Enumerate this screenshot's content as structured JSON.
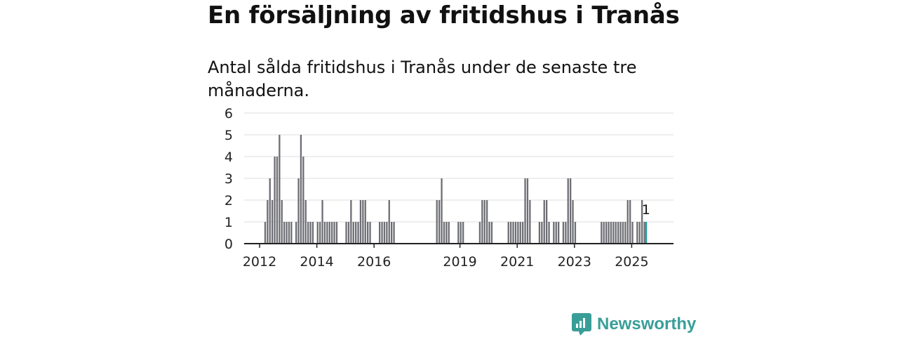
{
  "title": "En försäljning av fritidshus i Tranås",
  "subtitle": "Antal sålda fritidshus i Tranås under de senaste tre månaderna.",
  "brand": {
    "name": "Newsworthy",
    "icon": "newsworthy-logo-icon",
    "color": "#3a9e98"
  },
  "colors": {
    "bar": "#6d6e74",
    "highlight": "#1e9b9b",
    "grid": "#dcdcdc",
    "axis": "#222222"
  },
  "chart_data": {
    "type": "bar",
    "x_unit": "month",
    "x_start": "2012-01",
    "x_end": "2025-08",
    "ylim": [
      0,
      6
    ],
    "yticks": [
      0,
      1,
      2,
      3,
      4,
      5,
      6
    ],
    "xticks": [
      "2012",
      "2014",
      "2016",
      "2019",
      "2021",
      "2023",
      "2025"
    ],
    "grid": true,
    "highlight": {
      "month": "2025-07",
      "value": 1,
      "label": "1"
    },
    "values": [
      {
        "month": "2012-03",
        "value": 1
      },
      {
        "month": "2012-04",
        "value": 2
      },
      {
        "month": "2012-05",
        "value": 3
      },
      {
        "month": "2012-06",
        "value": 2
      },
      {
        "month": "2012-07",
        "value": 4
      },
      {
        "month": "2012-08",
        "value": 4
      },
      {
        "month": "2012-09",
        "value": 5
      },
      {
        "month": "2012-10",
        "value": 2
      },
      {
        "month": "2012-11",
        "value": 1
      },
      {
        "month": "2012-12",
        "value": 1
      },
      {
        "month": "2013-01",
        "value": 1
      },
      {
        "month": "2013-02",
        "value": 1
      },
      {
        "month": "2013-04",
        "value": 1
      },
      {
        "month": "2013-05",
        "value": 3
      },
      {
        "month": "2013-06",
        "value": 5
      },
      {
        "month": "2013-07",
        "value": 4
      },
      {
        "month": "2013-08",
        "value": 2
      },
      {
        "month": "2013-09",
        "value": 1
      },
      {
        "month": "2013-10",
        "value": 1
      },
      {
        "month": "2013-11",
        "value": 1
      },
      {
        "month": "2014-01",
        "value": 1
      },
      {
        "month": "2014-02",
        "value": 1
      },
      {
        "month": "2014-03",
        "value": 2
      },
      {
        "month": "2014-04",
        "value": 1
      },
      {
        "month": "2014-05",
        "value": 1
      },
      {
        "month": "2014-06",
        "value": 1
      },
      {
        "month": "2014-07",
        "value": 1
      },
      {
        "month": "2014-08",
        "value": 1
      },
      {
        "month": "2014-09",
        "value": 1
      },
      {
        "month": "2015-01",
        "value": 1
      },
      {
        "month": "2015-02",
        "value": 1
      },
      {
        "month": "2015-03",
        "value": 2
      },
      {
        "month": "2015-04",
        "value": 1
      },
      {
        "month": "2015-05",
        "value": 1
      },
      {
        "month": "2015-06",
        "value": 1
      },
      {
        "month": "2015-07",
        "value": 2
      },
      {
        "month": "2015-08",
        "value": 2
      },
      {
        "month": "2015-09",
        "value": 2
      },
      {
        "month": "2015-10",
        "value": 1
      },
      {
        "month": "2015-11",
        "value": 1
      },
      {
        "month": "2016-03",
        "value": 1
      },
      {
        "month": "2016-04",
        "value": 1
      },
      {
        "month": "2016-05",
        "value": 1
      },
      {
        "month": "2016-06",
        "value": 1
      },
      {
        "month": "2016-07",
        "value": 2
      },
      {
        "month": "2016-08",
        "value": 1
      },
      {
        "month": "2016-09",
        "value": 1
      },
      {
        "month": "2018-03",
        "value": 2
      },
      {
        "month": "2018-04",
        "value": 2
      },
      {
        "month": "2018-05",
        "value": 3
      },
      {
        "month": "2018-06",
        "value": 1
      },
      {
        "month": "2018-07",
        "value": 1
      },
      {
        "month": "2018-08",
        "value": 1
      },
      {
        "month": "2018-12",
        "value": 1
      },
      {
        "month": "2019-01",
        "value": 1
      },
      {
        "month": "2019-02",
        "value": 1
      },
      {
        "month": "2019-09",
        "value": 1
      },
      {
        "month": "2019-10",
        "value": 2
      },
      {
        "month": "2019-11",
        "value": 2
      },
      {
        "month": "2019-12",
        "value": 2
      },
      {
        "month": "2020-01",
        "value": 1
      },
      {
        "month": "2020-02",
        "value": 1
      },
      {
        "month": "2020-09",
        "value": 1
      },
      {
        "month": "2020-10",
        "value": 1
      },
      {
        "month": "2020-11",
        "value": 1
      },
      {
        "month": "2020-12",
        "value": 1
      },
      {
        "month": "2021-01",
        "value": 1
      },
      {
        "month": "2021-02",
        "value": 1
      },
      {
        "month": "2021-03",
        "value": 1
      },
      {
        "month": "2021-04",
        "value": 3
      },
      {
        "month": "2021-05",
        "value": 3
      },
      {
        "month": "2021-06",
        "value": 2
      },
      {
        "month": "2021-10",
        "value": 1
      },
      {
        "month": "2021-11",
        "value": 1
      },
      {
        "month": "2021-12",
        "value": 2
      },
      {
        "month": "2022-01",
        "value": 2
      },
      {
        "month": "2022-02",
        "value": 1
      },
      {
        "month": "2022-04",
        "value": 1
      },
      {
        "month": "2022-05",
        "value": 1
      },
      {
        "month": "2022-06",
        "value": 1
      },
      {
        "month": "2022-08",
        "value": 1
      },
      {
        "month": "2022-09",
        "value": 1
      },
      {
        "month": "2022-10",
        "value": 3
      },
      {
        "month": "2022-11",
        "value": 3
      },
      {
        "month": "2022-12",
        "value": 2
      },
      {
        "month": "2023-01",
        "value": 1
      },
      {
        "month": "2023-12",
        "value": 1
      },
      {
        "month": "2024-01",
        "value": 1
      },
      {
        "month": "2024-02",
        "value": 1
      },
      {
        "month": "2024-03",
        "value": 1
      },
      {
        "month": "2024-04",
        "value": 1
      },
      {
        "month": "2024-05",
        "value": 1
      },
      {
        "month": "2024-06",
        "value": 1
      },
      {
        "month": "2024-07",
        "value": 1
      },
      {
        "month": "2024-08",
        "value": 1
      },
      {
        "month": "2024-09",
        "value": 1
      },
      {
        "month": "2024-10",
        "value": 1
      },
      {
        "month": "2024-11",
        "value": 2
      },
      {
        "month": "2024-12",
        "value": 2
      },
      {
        "month": "2025-01",
        "value": 1
      },
      {
        "month": "2025-03",
        "value": 1
      },
      {
        "month": "2025-04",
        "value": 1
      },
      {
        "month": "2025-05",
        "value": 2
      },
      {
        "month": "2025-06",
        "value": 1
      },
      {
        "month": "2025-07",
        "value": 1
      }
    ]
  }
}
